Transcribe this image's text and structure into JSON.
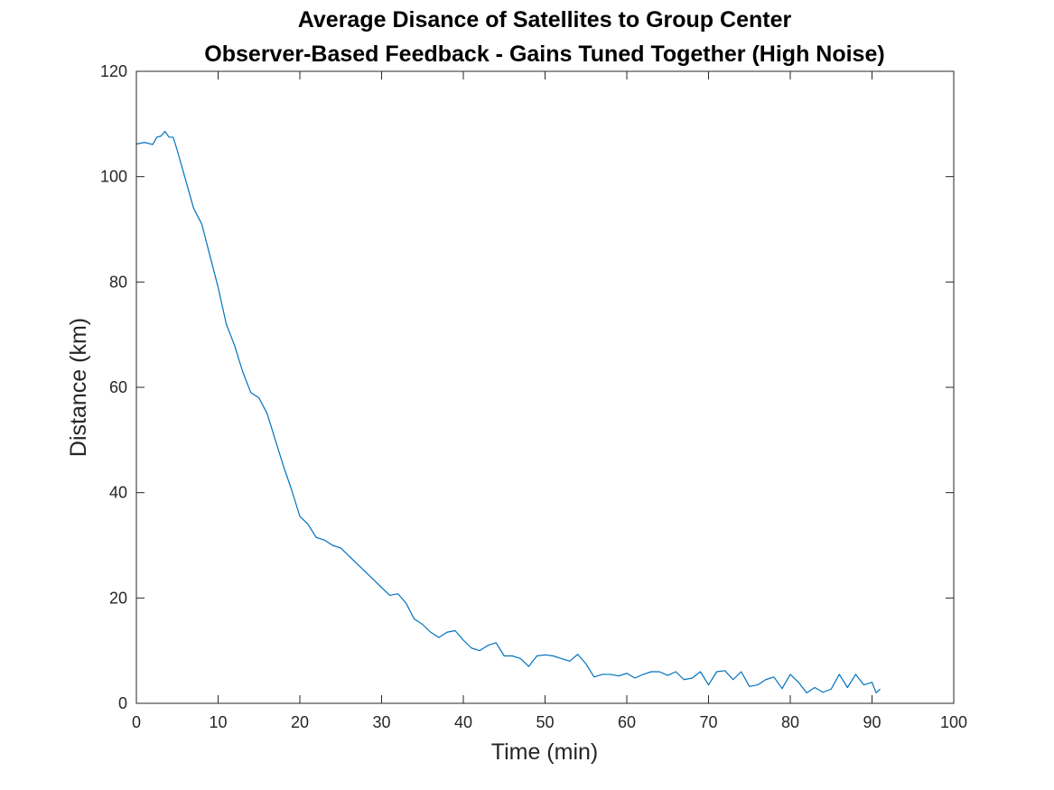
{
  "chart_data": {
    "type": "line",
    "title": [
      "Average Disance of Satellites to Group Center",
      "Observer-Based Feedback - Gains Tuned Together (High Noise)"
    ],
    "xlabel": "Time (min)",
    "ylabel": "Distance (km)",
    "xlim": [
      0,
      100
    ],
    "ylim": [
      0,
      120
    ],
    "xticks": [
      0,
      10,
      20,
      30,
      40,
      50,
      60,
      70,
      80,
      90,
      100
    ],
    "yticks": [
      0,
      20,
      40,
      60,
      80,
      100,
      120
    ],
    "grid": false,
    "legend": "none",
    "series": [
      {
        "color": "#0072BD",
        "x": [
          0,
          1,
          2,
          2.5,
          3,
          3.5,
          4,
          4.5,
          5,
          6,
          7,
          7.5,
          8,
          9,
          10,
          11,
          12,
          13,
          14,
          15,
          16,
          17,
          18,
          19,
          20,
          21,
          22,
          23,
          24,
          25,
          26,
          27,
          28,
          29,
          30,
          31,
          32,
          33,
          34,
          35,
          36,
          37,
          38,
          39,
          40,
          41,
          42,
          43,
          44,
          45,
          46,
          47,
          48,
          49,
          50,
          51,
          52,
          53,
          54,
          55,
          56,
          57,
          58,
          59,
          60,
          61,
          62,
          63,
          64,
          65,
          66,
          67,
          68,
          69,
          70,
          71,
          72,
          73,
          74,
          75,
          76,
          77,
          78,
          79,
          80,
          81,
          82,
          83,
          84,
          85,
          86,
          87,
          88,
          89,
          90,
          90.5,
          91
        ],
        "y": [
          106.2,
          106.5,
          106.1,
          107.5,
          107.7,
          108.6,
          107.5,
          107.5,
          105,
          99.5,
          94,
          92.5,
          91,
          85,
          79,
          72,
          68,
          63,
          59,
          58,
          55,
          50,
          45,
          40.5,
          35.5,
          34,
          31.5,
          31,
          30,
          29.5,
          28,
          26.5,
          25,
          23.5,
          22,
          20.5,
          20.8,
          19,
          16,
          15,
          13.5,
          12.5,
          13.5,
          13.8,
          12,
          10.5,
          10,
          11,
          11.5,
          9,
          9,
          8.5,
          7,
          9,
          9.2,
          9,
          8.5,
          8,
          9.3,
          7.5,
          5,
          5.5,
          5.5,
          5.2,
          5.7,
          4.8,
          5.5,
          6,
          6,
          5.3,
          6,
          4.5,
          4.8,
          6,
          3.5,
          6,
          6.2,
          4.5,
          6,
          3.2,
          3.5,
          4.5,
          5,
          2.8,
          5.5,
          4,
          2,
          3,
          2.1,
          2.7,
          5.5,
          3,
          5.5,
          3.5,
          4,
          2,
          2.7
        ]
      }
    ]
  }
}
